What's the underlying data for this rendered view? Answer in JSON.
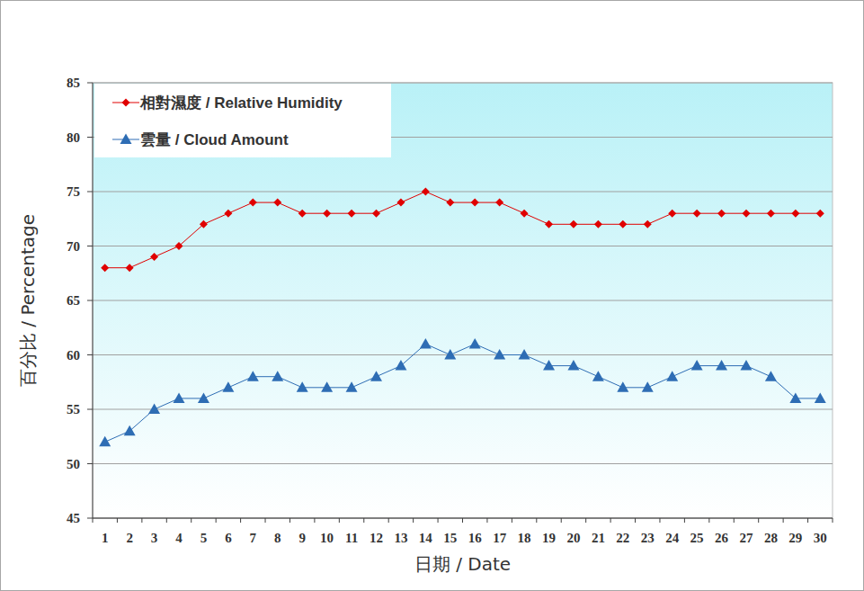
{
  "chart_data": {
    "type": "line",
    "x_label": "日期 / Date",
    "y_label": "百分比 / Percentage",
    "categories": [
      "1",
      "2",
      "3",
      "4",
      "5",
      "6",
      "7",
      "8",
      "9",
      "10",
      "11",
      "12",
      "13",
      "14",
      "15",
      "16",
      "17",
      "18",
      "19",
      "20",
      "21",
      "22",
      "23",
      "24",
      "25",
      "26",
      "27",
      "28",
      "29",
      "30"
    ],
    "series": [
      {
        "name": "相對濕度 / Relative Humidity",
        "color": "#e00000",
        "marker": "diamond",
        "values": [
          68,
          68,
          69,
          70,
          72,
          73,
          74,
          74,
          73,
          73,
          73,
          73,
          74,
          75,
          74,
          74,
          74,
          73,
          72,
          72,
          72,
          72,
          72,
          73,
          73,
          73,
          73,
          73,
          73,
          73
        ]
      },
      {
        "name": "雲量 / Cloud Amount",
        "color": "#2e6db4",
        "marker": "triangle",
        "values": [
          52,
          53,
          55,
          56,
          56,
          57,
          58,
          58,
          57,
          57,
          57,
          58,
          59,
          61,
          60,
          61,
          60,
          60,
          59,
          59,
          58,
          57,
          57,
          58,
          59,
          59,
          59,
          58,
          56,
          56
        ]
      }
    ],
    "ylim": [
      45,
      85
    ],
    "yticks": [
      45,
      50,
      55,
      60,
      65,
      70,
      75,
      80,
      85
    ],
    "grid": true,
    "legend": "upper left"
  }
}
